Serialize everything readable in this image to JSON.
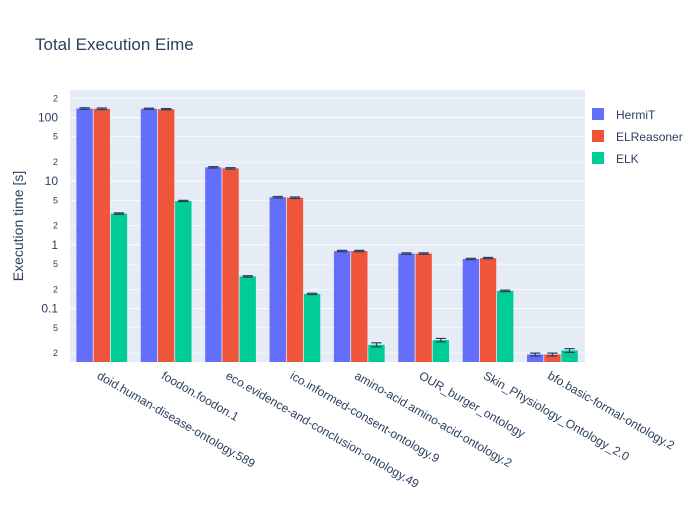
{
  "chart_data": {
    "type": "bar",
    "title": "Total Execution Eime",
    "xlabel": "",
    "ylabel": "Execution time [s]",
    "yscale": "log",
    "ylim": [
      0.0145,
      270
    ],
    "grid": true,
    "legend_position": "right",
    "categories": [
      "doid.human-disease-ontology.589",
      "foodon.foodon.1",
      "eco.evidence-and-conclusion-ontology.49",
      "ico.informed-consent-ontology.9",
      "amino-acid.amino-acid-ontology.2",
      "OUR_burger_ontology",
      "Skin_Physiology_Ontology_2.0",
      "bfo.basic-formal-ontology.2"
    ],
    "series": [
      {
        "name": "HermiT",
        "color": "#636efa",
        "values": [
          138,
          137,
          16.5,
          5.6,
          0.8,
          0.73,
          0.6,
          0.019
        ],
        "errors": [
          4,
          3,
          0.4,
          0.15,
          0.02,
          0.02,
          0.015,
          0.001
        ]
      },
      {
        "name": "ELReasoner",
        "color": "#ef553b",
        "values": [
          137,
          135,
          15.9,
          5.5,
          0.8,
          0.73,
          0.62,
          0.019
        ],
        "errors": [
          4,
          3,
          0.4,
          0.15,
          0.02,
          0.02,
          0.015,
          0.001
        ]
      },
      {
        "name": "ELK",
        "color": "#00cc96",
        "values": [
          3.1,
          4.9,
          0.32,
          0.17,
          0.027,
          0.032,
          0.19,
          0.022
        ],
        "errors": [
          0.08,
          0.1,
          0.008,
          0.004,
          0.002,
          0.002,
          0.005,
          0.0015
        ]
      }
    ],
    "y_major_ticks": [
      {
        "value": 0.1,
        "label": "0.1"
      },
      {
        "value": 1,
        "label": "1"
      },
      {
        "value": 10,
        "label": "10"
      },
      {
        "value": 100,
        "label": "100"
      }
    ],
    "y_minor_ticks": [
      {
        "value": 0.02,
        "label": "2"
      },
      {
        "value": 0.05,
        "label": "5"
      },
      {
        "value": 0.2,
        "label": "2"
      },
      {
        "value": 0.5,
        "label": "5"
      },
      {
        "value": 2,
        "label": "2"
      },
      {
        "value": 5,
        "label": "5"
      },
      {
        "value": 20,
        "label": "2"
      },
      {
        "value": 50,
        "label": "5"
      },
      {
        "value": 200,
        "label": "2"
      }
    ],
    "colors": {
      "plot_background": "#e5ecf6",
      "gridline": "#ffffff",
      "text": "#2a3f5f"
    }
  }
}
